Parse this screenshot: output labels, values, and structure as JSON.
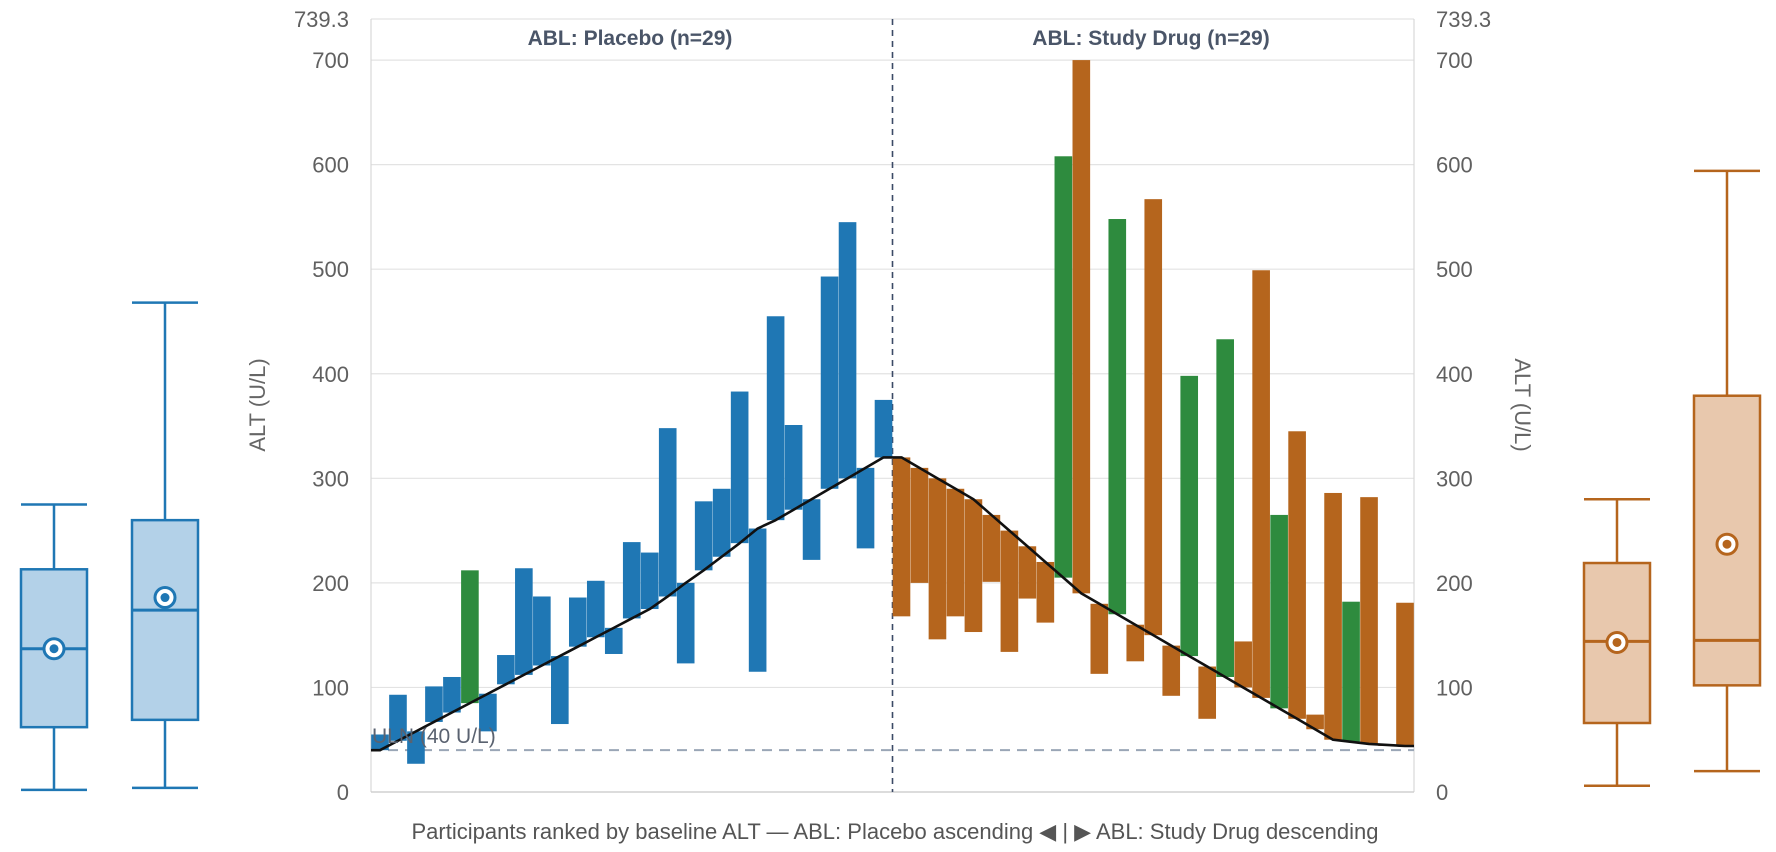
{
  "chart_data": {
    "type": "bar",
    "subtype": "waterfall-with-boxplots",
    "xlabel": "Participants ranked by baseline ALT — ABL: Placebo ascending ◀ | ▶ ABL: Study Drug descending",
    "ylabel_left": "ALT (U/L)",
    "ylabel_right": "ALT (U/L)",
    "ylim": [
      0,
      739.3
    ],
    "y_max_label": "739.3",
    "yticks": [
      0,
      100,
      200,
      300,
      400,
      500,
      600,
      700
    ],
    "grid": true,
    "reference_line": {
      "label": "ULN (40 U/L)",
      "value": 40
    },
    "colors": {
      "placebo": "#1f77b4",
      "drug": "#b5651d",
      "highlight": "#2e8b3e",
      "baseline": "#111111",
      "placebo_fill": "#b3d1e8",
      "drug_fill": "#e8c8ad"
    },
    "panels": [
      {
        "name": "ABL: Placebo (n=29)",
        "order": "ascending",
        "baseline": [
          40,
          49,
          58,
          67,
          76,
          85,
          94,
          103,
          112,
          121,
          130,
          139,
          148,
          157,
          166,
          175,
          187,
          200,
          212,
          225,
          238,
          252,
          260,
          270,
          280,
          290,
          300,
          310,
          320
        ],
        "value": [
          55,
          93,
          27,
          101,
          110,
          212,
          58,
          131,
          214,
          187,
          65,
          186,
          202,
          132,
          239,
          229,
          348,
          123,
          278,
          290,
          383,
          115,
          455,
          351,
          222,
          493,
          545,
          233,
          375
        ],
        "highlight": [
          false,
          false,
          false,
          false,
          false,
          true,
          false,
          false,
          false,
          false,
          false,
          false,
          false,
          false,
          false,
          false,
          false,
          false,
          false,
          false,
          false,
          false,
          false,
          false,
          false,
          false,
          false,
          false,
          false
        ]
      },
      {
        "name": "ABL: Study Drug (n=29)",
        "order": "descending",
        "baseline": [
          320,
          310,
          300,
          290,
          280,
          265,
          250,
          235,
          220,
          205,
          190,
          180,
          170,
          160,
          150,
          140,
          130,
          120,
          110,
          100,
          90,
          80,
          70,
          60,
          50,
          48,
          46,
          45,
          44
        ],
        "value": [
          168,
          200,
          146,
          168,
          153,
          201,
          134,
          185,
          162,
          608,
          700,
          113,
          548,
          125,
          567,
          92,
          398,
          70,
          433,
          144,
          499,
          265,
          345,
          74,
          286,
          182,
          282,
          45,
          181
        ],
        "highlight": [
          false,
          false,
          false,
          false,
          false,
          false,
          false,
          false,
          false,
          true,
          false,
          false,
          true,
          false,
          false,
          false,
          true,
          false,
          true,
          false,
          false,
          true,
          false,
          false,
          false,
          true,
          false,
          false,
          false
        ]
      }
    ],
    "boxplots": [
      {
        "group": "placebo",
        "timepoint": "baseline",
        "min": 2,
        "q1": 62,
        "median": 137,
        "q3": 213,
        "max": 275,
        "mean": 137
      },
      {
        "group": "placebo",
        "timepoint": "value",
        "min": 4,
        "q1": 69,
        "median": 174,
        "q3": 260,
        "max": 468,
        "mean": 186
      },
      {
        "group": "drug",
        "timepoint": "baseline",
        "min": 6,
        "q1": 66,
        "median": 144,
        "q3": 219,
        "max": 280,
        "mean": 143
      },
      {
        "group": "drug",
        "timepoint": "value",
        "min": 20,
        "q1": 102,
        "median": 145,
        "q3": 379,
        "max": 594,
        "mean": 237
      }
    ]
  }
}
